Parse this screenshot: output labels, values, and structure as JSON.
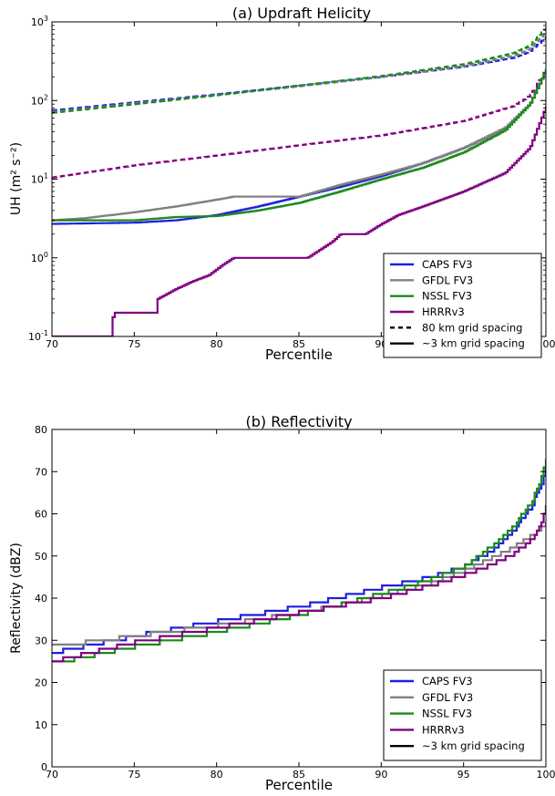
{
  "chart_data": [
    {
      "type": "line",
      "title": "(a) Updraft Helicity",
      "xlabel": "Percentile",
      "ylabel": "UH (m² s⁻²)",
      "y_scale": "log",
      "xlim": [
        70,
        100
      ],
      "ylim": [
        0.1,
        1000
      ],
      "x_ticks": [
        "70",
        "75",
        "80",
        "85",
        "90",
        "95",
        "100"
      ],
      "y_ticks": [
        {
          "base": "10",
          "exp": "-1"
        },
        {
          "base": "10",
          "exp": "0"
        },
        {
          "base": "10",
          "exp": "1"
        },
        {
          "base": "10",
          "exp": "2"
        },
        {
          "base": "10",
          "exp": "3"
        }
      ],
      "legend_position": "lower-right",
      "legend": [
        {
          "label": "CAPS FV3",
          "color": "#1f1fe0",
          "style": "solid"
        },
        {
          "label": "GFDL FV3",
          "color": "#808080",
          "style": "solid"
        },
        {
          "label": "NSSL FV3",
          "color": "#1a8a1a",
          "style": "solid"
        },
        {
          "label": "HRRRv3",
          "color": "#800080",
          "style": "solid"
        },
        {
          "label": "80 km grid spacing",
          "color": "#000000",
          "style": "dashed"
        },
        {
          "label": "~3 km grid spacing",
          "color": "#000000",
          "style": "solid"
        }
      ],
      "series": [
        {
          "name": "CAPS FV3",
          "grid": "80 km",
          "color": "#1f1fe0",
          "dash": true,
          "x": [
            70,
            75,
            80,
            85,
            90,
            95,
            98,
            99,
            100
          ],
          "y": [
            75,
            95,
            120,
            155,
            200,
            270,
            350,
            420,
            650
          ]
        },
        {
          "name": "GFDL FV3",
          "grid": "80 km",
          "color": "#808080",
          "dash": true,
          "x": [
            70,
            75,
            80,
            85,
            90,
            95,
            98,
            99,
            100
          ],
          "y": [
            72,
            92,
            118,
            152,
            200,
            275,
            370,
            450,
            750
          ]
        },
        {
          "name": "NSSL FV3",
          "grid": "80 km",
          "color": "#1a8a1a",
          "dash": true,
          "x": [
            70,
            75,
            80,
            85,
            90,
            95,
            98,
            99,
            100
          ],
          "y": [
            70,
            90,
            117,
            155,
            205,
            290,
            400,
            500,
            850
          ]
        },
        {
          "name": "HRRRv3",
          "grid": "80 km",
          "color": "#800080",
          "dash": true,
          "x": [
            70,
            75,
            80,
            85,
            90,
            95,
            98,
            99,
            100
          ],
          "y": [
            10.5,
            15,
            20,
            27,
            36,
            55,
            85,
            115,
            250
          ]
        },
        {
          "name": "CAPS FV3",
          "grid": "~3 km",
          "color": "#1f1fe0",
          "dash": false,
          "x": [
            70,
            75,
            77.5,
            80,
            82.5,
            85,
            87.5,
            90,
            92.5,
            95,
            97.5,
            99,
            100
          ],
          "y": [
            2.7,
            2.8,
            3.0,
            3.5,
            4.5,
            6,
            8,
            11,
            16,
            25,
            45,
            90,
            250
          ]
        },
        {
          "name": "GFDL FV3",
          "grid": "~3 km",
          "color": "#808080",
          "dash": false,
          "x": [
            70,
            72,
            75,
            77.5,
            80,
            81,
            85,
            87.5,
            90,
            92.5,
            95,
            97.5,
            99,
            100
          ],
          "y": [
            3.0,
            3.2,
            3.8,
            4.5,
            5.5,
            6,
            6,
            8.5,
            11.5,
            16,
            25,
            45,
            90,
            250
          ]
        },
        {
          "name": "NSSL FV3",
          "grid": "~3 km",
          "color": "#1a8a1a",
          "dash": false,
          "x": [
            70,
            75,
            77.5,
            80,
            82.5,
            85,
            87.5,
            90,
            92.5,
            95,
            97.5,
            99,
            100
          ],
          "y": [
            3.0,
            3.0,
            3.3,
            3.4,
            4.0,
            5.0,
            7.0,
            10,
            14,
            22,
            42,
            90,
            250
          ]
        },
        {
          "name": "HRRRv3",
          "grid": "~3 km",
          "color": "#800080",
          "dash": false,
          "x": [
            70,
            73.6,
            73.7,
            76.3,
            76.4,
            77.5,
            78.5,
            79.5,
            80.3,
            81,
            85.5,
            87,
            87.5,
            89,
            90,
            91,
            92.5,
            95,
            97.5,
            99,
            100
          ],
          "y": [
            0.1,
            0.1,
            0.2,
            0.2,
            0.3,
            0.4,
            0.5,
            0.6,
            0.8,
            1.0,
            1.0,
            1.6,
            2.0,
            2.0,
            2.7,
            3.5,
            4.5,
            7,
            12,
            25,
            85
          ]
        }
      ]
    },
    {
      "type": "line",
      "title": "(b) Reflectivity",
      "xlabel": "Percentile",
      "ylabel": "Reflectivity (dBZ)",
      "y_scale": "linear",
      "xlim": [
        70,
        100
      ],
      "ylim": [
        0,
        80
      ],
      "x_ticks": [
        "70",
        "75",
        "80",
        "85",
        "90",
        "95",
        "100"
      ],
      "y_ticks": [
        "0",
        "10",
        "20",
        "30",
        "40",
        "50",
        "60",
        "70",
        "80"
      ],
      "legend_position": "lower-right",
      "legend": [
        {
          "label": "CAPS FV3",
          "color": "#1f1fe0",
          "style": "solid"
        },
        {
          "label": "GFDL FV3",
          "color": "#808080",
          "style": "solid"
        },
        {
          "label": "NSSL FV3",
          "color": "#1a8a1a",
          "style": "solid"
        },
        {
          "label": "HRRRv3",
          "color": "#800080",
          "style": "solid"
        },
        {
          "label": "~3 km grid spacing",
          "color": "#000000",
          "style": "solid"
        }
      ],
      "series": [
        {
          "name": "CAPS FV3",
          "color": "#1f1fe0",
          "dash": false,
          "x": [
            70,
            75,
            80,
            85,
            90,
            93,
            95,
            97,
            98,
            99,
            99.5,
            100
          ],
          "y": [
            27,
            31,
            34.5,
            38,
            42.5,
            45,
            47.5,
            52,
            56,
            61,
            65,
            70.5
          ]
        },
        {
          "name": "GFDL FV3",
          "color": "#808080",
          "dash": false,
          "x": [
            70,
            75,
            80,
            85,
            90,
            93,
            95,
            97,
            98,
            99,
            99.5,
            100
          ],
          "y": [
            28.5,
            31,
            33.5,
            36.5,
            40.5,
            43.5,
            46.5,
            50,
            52,
            54.5,
            56,
            58
          ]
        },
        {
          "name": "NSSL FV3",
          "color": "#1a8a1a",
          "dash": false,
          "x": [
            70,
            75,
            80,
            85,
            90,
            93,
            95,
            97,
            98,
            99,
            99.5,
            100
          ],
          "y": [
            24.5,
            28.5,
            32,
            36,
            41,
            44.5,
            47.5,
            53,
            57,
            62,
            66,
            72.5
          ]
        },
        {
          "name": "HRRRv3",
          "color": "#800080",
          "dash": false,
          "x": [
            70,
            75,
            80,
            85,
            90,
            93,
            95,
            97,
            98,
            99,
            99.5,
            100
          ],
          "y": [
            25,
            29.5,
            33,
            36.5,
            40,
            43,
            45.5,
            48.5,
            50.5,
            53.5,
            56,
            61.5
          ]
        }
      ]
    }
  ]
}
